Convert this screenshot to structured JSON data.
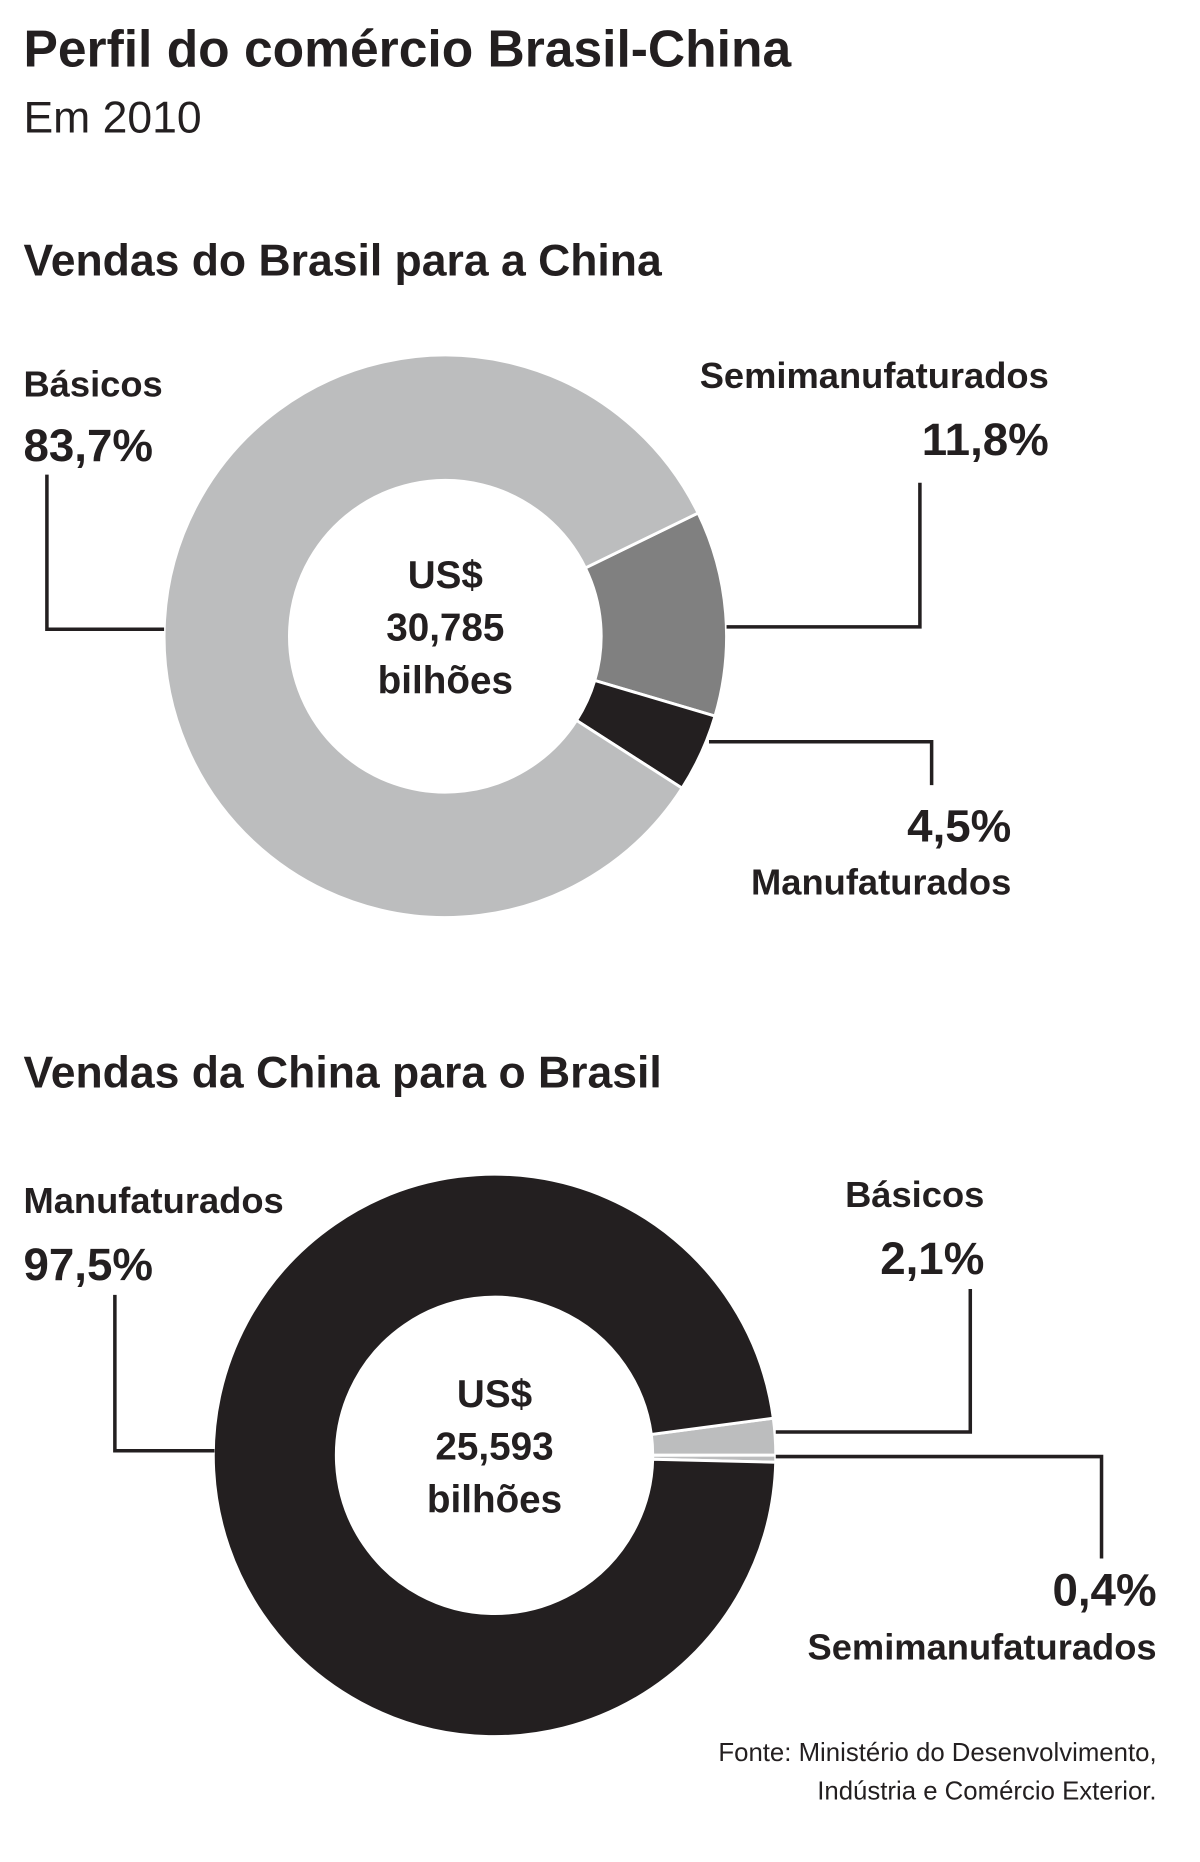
{
  "title": "Perfil do comércio Brasil-China",
  "subtitle": "Em 2010",
  "source": [
    "Fonte: Ministério do Desenvolvimento,",
    "Indústria e Comércio Exterior."
  ],
  "chart_data": [
    {
      "type": "donut",
      "title": "Vendas do Brasil para a China",
      "center_label": [
        "US$",
        "30,785",
        "bilhões"
      ],
      "categories": [
        "Semimanufaturados",
        "Manufaturados",
        "Básicos"
      ],
      "values": [
        11.8,
        4.5,
        83.7
      ],
      "value_labels": [
        "11,8%",
        "4,5%",
        "83,7%"
      ],
      "colors": [
        "#808080",
        "#231f20",
        "#bcbdbe"
      ]
    },
    {
      "type": "donut",
      "title": "Vendas da China para o Brasil",
      "center_label": [
        "US$",
        "25,593",
        "bilhões"
      ],
      "categories": [
        "Básicos",
        "Semimanufaturados",
        "Manufaturados"
      ],
      "values": [
        2.1,
        0.4,
        97.5
      ],
      "value_labels": [
        "2,1%",
        "0,4%",
        "97,5%"
      ],
      "colors": [
        "#bcbdbe",
        "#bcbdbe",
        "#231f20"
      ]
    }
  ]
}
